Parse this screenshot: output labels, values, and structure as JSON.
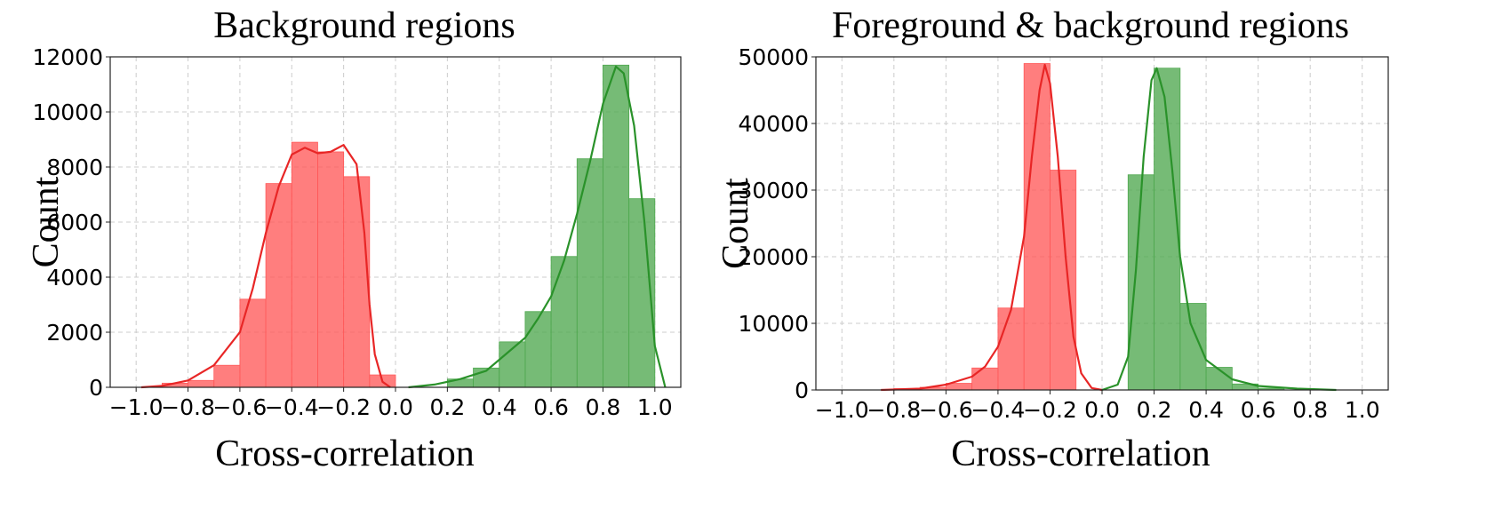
{
  "chart_data": [
    {
      "type": "bar",
      "title": "Background regions",
      "xlabel": "Cross-correlation",
      "ylabel": "Count",
      "xlim": [
        -1.1,
        1.1
      ],
      "ylim": [
        0,
        12000
      ],
      "xticks": [
        "−1.0",
        "−0.8",
        "−0.6",
        "−0.4",
        "−0.2",
        "0.0",
        "0.2",
        "0.4",
        "0.6",
        "0.8",
        "1.0"
      ],
      "xtick_values": [
        -1.0,
        -0.8,
        -0.6,
        -0.4,
        -0.2,
        0.0,
        0.2,
        0.4,
        0.6,
        0.8,
        1.0
      ],
      "yticks": [
        "0",
        "2000",
        "4000",
        "6000",
        "8000",
        "10000",
        "12000"
      ],
      "ytick_values": [
        0,
        2000,
        4000,
        6000,
        8000,
        10000,
        12000
      ],
      "grid": true,
      "series": [
        {
          "color": "#ff5a5a",
          "line_color": "#e82626",
          "bin_width": 0.1,
          "bins": [
            {
              "x0": -0.9,
              "value": 150
            },
            {
              "x0": -0.8,
              "value": 250
            },
            {
              "x0": -0.7,
              "value": 800
            },
            {
              "x0": -0.6,
              "value": 3200
            },
            {
              "x0": -0.5,
              "value": 7400
            },
            {
              "x0": -0.4,
              "value": 8900
            },
            {
              "x0": -0.3,
              "value": 8550
            },
            {
              "x0": -0.2,
              "value": 7650
            },
            {
              "x0": -0.1,
              "value": 450
            }
          ],
          "kde": [
            [
              -0.98,
              0
            ],
            [
              -0.9,
              50
            ],
            [
              -0.8,
              250
            ],
            [
              -0.7,
              800
            ],
            [
              -0.6,
              2000
            ],
            [
              -0.55,
              3600
            ],
            [
              -0.5,
              5600
            ],
            [
              -0.45,
              7300
            ],
            [
              -0.4,
              8450
            ],
            [
              -0.35,
              8700
            ],
            [
              -0.3,
              8500
            ],
            [
              -0.25,
              8550
            ],
            [
              -0.2,
              8800
            ],
            [
              -0.15,
              8100
            ],
            [
              -0.12,
              5600
            ],
            [
              -0.1,
              3000
            ],
            [
              -0.08,
              1200
            ],
            [
              -0.05,
              200
            ],
            [
              -0.02,
              0
            ]
          ]
        },
        {
          "color": "#4fa84f",
          "line_color": "#2a922a",
          "bin_width": 0.1,
          "bins": [
            {
              "x0": 0.2,
              "value": 300
            },
            {
              "x0": 0.3,
              "value": 700
            },
            {
              "x0": 0.4,
              "value": 1650
            },
            {
              "x0": 0.5,
              "value": 2750
            },
            {
              "x0": 0.6,
              "value": 4750
            },
            {
              "x0": 0.7,
              "value": 8300
            },
            {
              "x0": 0.8,
              "value": 11700
            },
            {
              "x0": 0.9,
              "value": 6850
            }
          ],
          "kde": [
            [
              0.05,
              0
            ],
            [
              0.15,
              100
            ],
            [
              0.25,
              300
            ],
            [
              0.35,
              600
            ],
            [
              0.45,
              1400
            ],
            [
              0.5,
              1800
            ],
            [
              0.55,
              2500
            ],
            [
              0.6,
              3300
            ],
            [
              0.65,
              4600
            ],
            [
              0.7,
              6300
            ],
            [
              0.75,
              8200
            ],
            [
              0.8,
              10300
            ],
            [
              0.85,
              11650
            ],
            [
              0.88,
              11400
            ],
            [
              0.92,
              9500
            ],
            [
              0.96,
              6000
            ],
            [
              1.0,
              1500
            ],
            [
              1.04,
              0
            ]
          ]
        }
      ]
    },
    {
      "type": "bar",
      "title": "Foreground & background regions",
      "xlabel": "Cross-correlation",
      "ylabel": "Count",
      "xlim": [
        -1.1,
        1.1
      ],
      "ylim": [
        0,
        50000
      ],
      "xticks": [
        "−1.0",
        "−0.8",
        "−0.6",
        "−0.4",
        "−0.2",
        "0.0",
        "0.2",
        "0.4",
        "0.6",
        "0.8",
        "1.0"
      ],
      "xtick_values": [
        -1.0,
        -0.8,
        -0.6,
        -0.4,
        -0.2,
        0.0,
        0.2,
        0.4,
        0.6,
        0.8,
        1.0
      ],
      "yticks": [
        "0",
        "10000",
        "20000",
        "30000",
        "40000",
        "50000"
      ],
      "ytick_values": [
        0,
        10000,
        20000,
        30000,
        40000,
        50000
      ],
      "grid": true,
      "series": [
        {
          "color": "#ff5a5a",
          "line_color": "#e82626",
          "bin_width": 0.1,
          "bins": [
            {
              "x0": -0.8,
              "value": 200
            },
            {
              "x0": -0.7,
              "value": 400
            },
            {
              "x0": -0.6,
              "value": 1000
            },
            {
              "x0": -0.5,
              "value": 3300
            },
            {
              "x0": -0.4,
              "value": 12300
            },
            {
              "x0": -0.3,
              "value": 49000
            },
            {
              "x0": -0.2,
              "value": 33000
            }
          ],
          "kde": [
            [
              -0.85,
              0
            ],
            [
              -0.7,
              200
            ],
            [
              -0.6,
              800
            ],
            [
              -0.5,
              2000
            ],
            [
              -0.45,
              3500
            ],
            [
              -0.4,
              6500
            ],
            [
              -0.35,
              12000
            ],
            [
              -0.3,
              23000
            ],
            [
              -0.27,
              35000
            ],
            [
              -0.24,
              45000
            ],
            [
              -0.22,
              48800
            ],
            [
              -0.2,
              46000
            ],
            [
              -0.17,
              35000
            ],
            [
              -0.14,
              20000
            ],
            [
              -0.11,
              8000
            ],
            [
              -0.08,
              2500
            ],
            [
              -0.04,
              300
            ],
            [
              0.0,
              0
            ]
          ]
        },
        {
          "color": "#4fa84f",
          "line_color": "#2a922a",
          "bin_width": 0.1,
          "bins": [
            {
              "x0": 0.1,
              "value": 32300
            },
            {
              "x0": 0.2,
              "value": 48300
            },
            {
              "x0": 0.3,
              "value": 13000
            },
            {
              "x0": 0.4,
              "value": 3400
            },
            {
              "x0": 0.5,
              "value": 900
            },
            {
              "x0": 0.6,
              "value": 250
            }
          ],
          "kde": [
            [
              0.0,
              0
            ],
            [
              0.06,
              800
            ],
            [
              0.1,
              5000
            ],
            [
              0.13,
              18000
            ],
            [
              0.16,
              35000
            ],
            [
              0.19,
              46500
            ],
            [
              0.21,
              48300
            ],
            [
              0.24,
              44000
            ],
            [
              0.27,
              33000
            ],
            [
              0.3,
              20000
            ],
            [
              0.34,
              10000
            ],
            [
              0.4,
              4500
            ],
            [
              0.5,
              1600
            ],
            [
              0.6,
              600
            ],
            [
              0.75,
              200
            ],
            [
              0.9,
              0
            ]
          ]
        }
      ]
    }
  ]
}
